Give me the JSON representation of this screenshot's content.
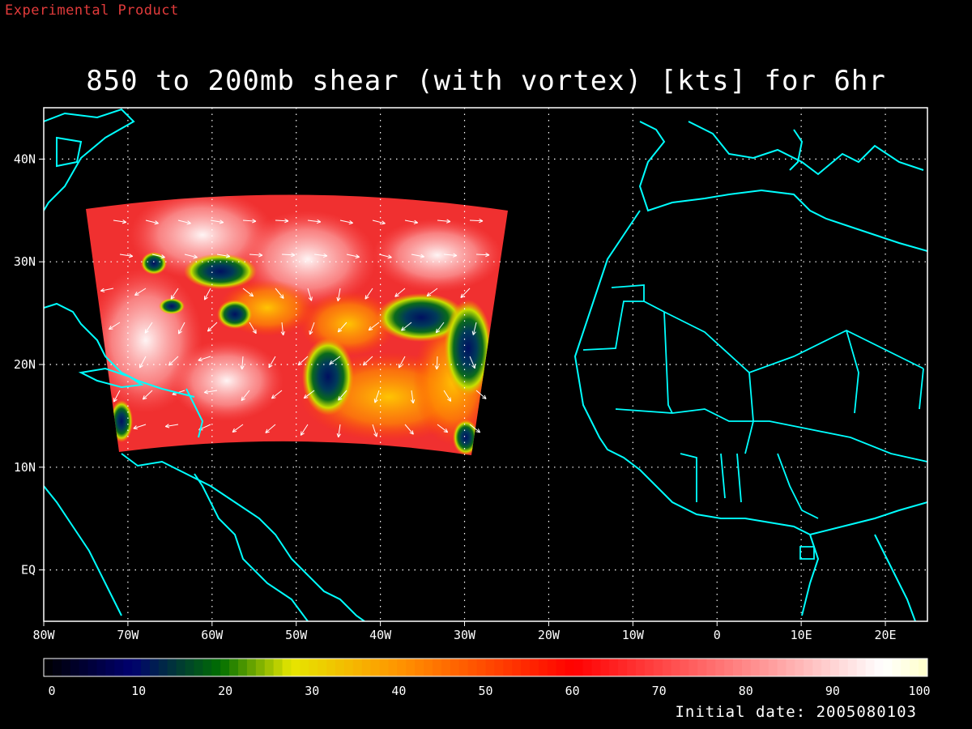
{
  "header": {
    "product_label": "Experimental Product",
    "title": "850 to 200mb shear (with vortex) [kts] for 6hr"
  },
  "footer": {
    "initial_date": "Initial date: 2005080103"
  },
  "map": {
    "lon_range": [
      -80,
      25
    ],
    "lat_range": [
      -5,
      45
    ],
    "lon_tick_labels": [
      "80W",
      "70W",
      "60W",
      "50W",
      "40W",
      "30W",
      "20W",
      "10W",
      "0",
      "10E",
      "20E"
    ],
    "lat_tick_labels": [
      "40N",
      "30N",
      "20N",
      "10N",
      "EQ"
    ],
    "grid": true,
    "coastline_color": "#00ffff",
    "vector_color": "#ffffff"
  },
  "colorbar": {
    "min": 0,
    "max": 100,
    "tick_labels": [
      "0",
      "10",
      "20",
      "30",
      "40",
      "50",
      "60",
      "70",
      "80",
      "90",
      "100"
    ]
  }
}
